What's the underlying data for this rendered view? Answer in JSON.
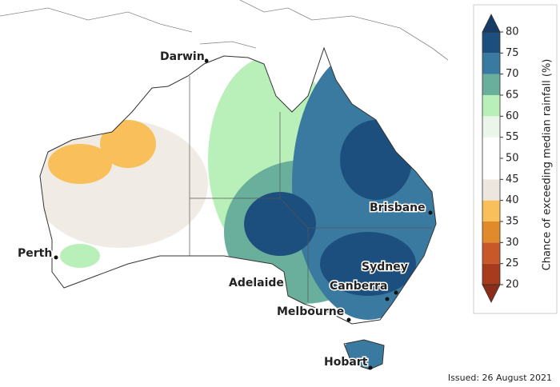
{
  "map": {
    "cities": [
      "Darwin",
      "Brisbane",
      "Perth",
      "Sydney",
      "Adelaide",
      "Canberra",
      "Melbourne",
      "Hobart"
    ],
    "issued": "Issued: 26 August 2021"
  },
  "legend": {
    "title": "Chance of exceeding median rainfall (%)",
    "ticks": [
      20,
      25,
      30,
      35,
      40,
      45,
      50,
      55,
      60,
      65,
      70,
      75,
      80
    ],
    "colors": [
      "#a83a1e",
      "#c8582a",
      "#e08a2c",
      "#f8bf5a",
      "#ede6de",
      "#ffffff",
      "#ffffff",
      "#e9f6e9",
      "#b9f0b9",
      "#6aaf9c",
      "#3a7aa0",
      "#1d4f7e"
    ],
    "over_color": "#163b66",
    "under_color": "#8b2d18"
  }
}
